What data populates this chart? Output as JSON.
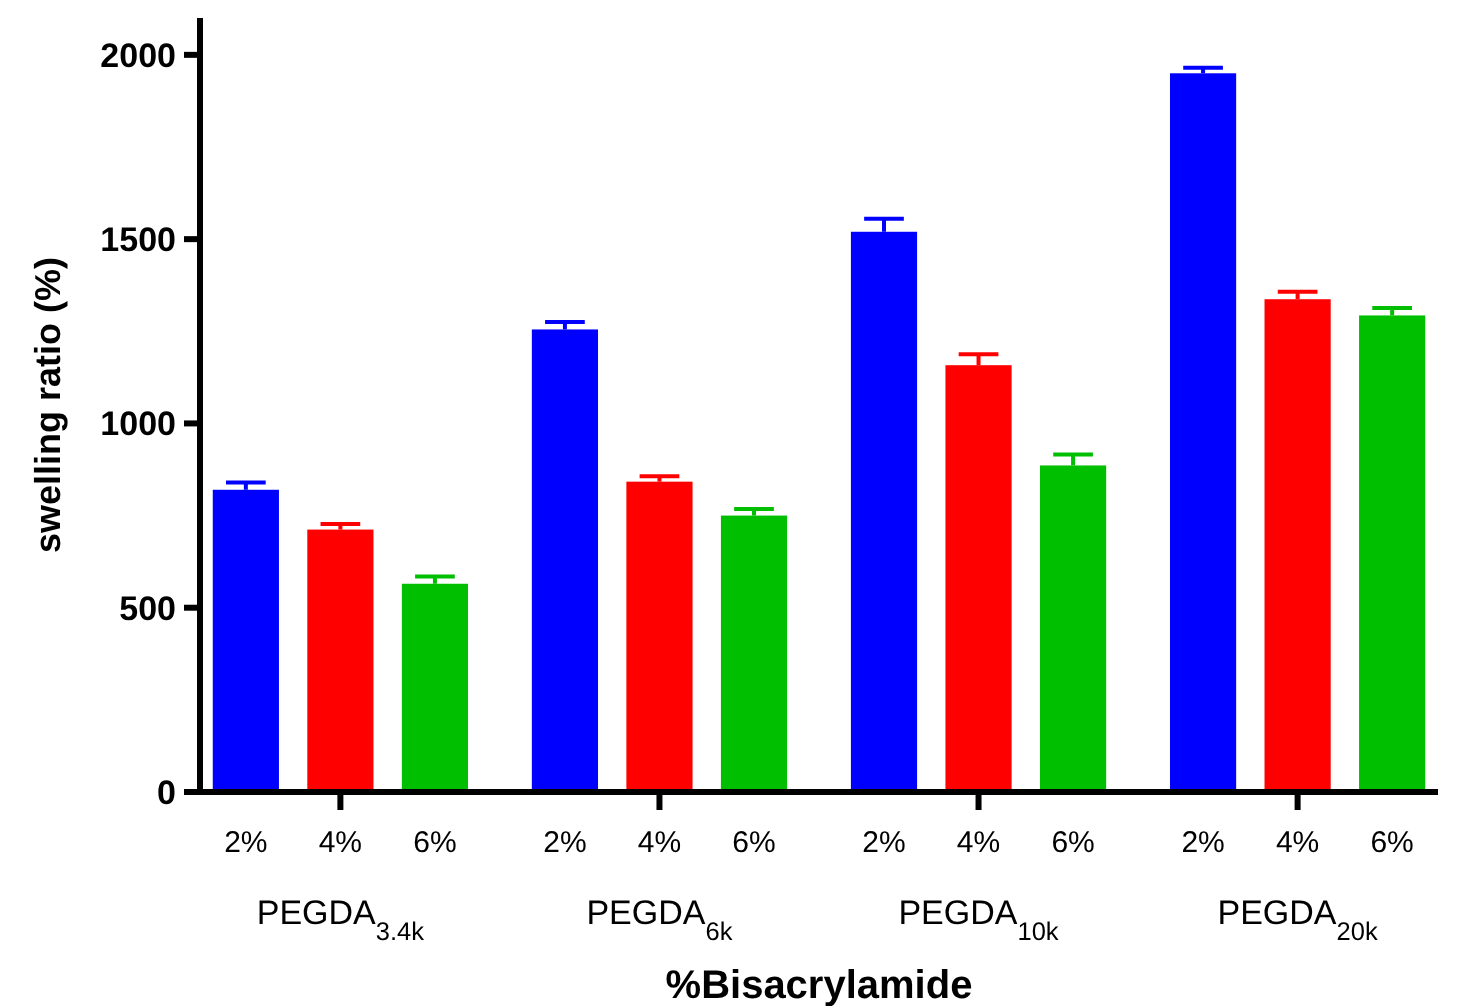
{
  "chart_data": {
    "type": "bar",
    "ylabel": "swelling ratio (%)",
    "xlabel": "%Bisacrylamide",
    "categories": [
      "PEGDA$_{3.4k}$",
      "PEGDA$_{6k}$",
      "PEGDA$_{10k}$",
      "PEGDA$_{20k}$"
    ],
    "series": [
      {
        "name": "2%",
        "color": "#0000ff",
        "values": [
          820,
          1255,
          1520,
          1950
        ],
        "errors": [
          20,
          20,
          35,
          15
        ]
      },
      {
        "name": "4%",
        "color": "#ff0000",
        "values": [
          712,
          842,
          1158,
          1337
        ],
        "errors": [
          15,
          15,
          30,
          20
        ]
      },
      {
        "name": "6%",
        "color": "#00bf00",
        "values": [
          565,
          750,
          886,
          1293
        ],
        "errors": [
          20,
          18,
          30,
          20
        ]
      }
    ],
    "ylim": [
      0,
      2100
    ],
    "yticks": [
      0,
      500,
      1000,
      1500,
      2000
    ]
  }
}
